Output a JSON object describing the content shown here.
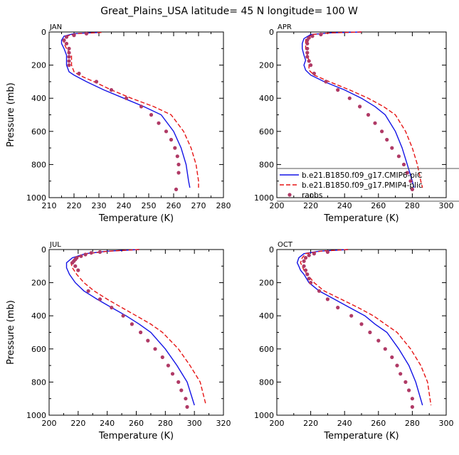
{
  "page": {
    "title": "Great_Plains_USA   latitude= 45 N longitude= 100 W"
  },
  "colors": {
    "series_model_a": "#1414e6",
    "series_model_b": "#e61414",
    "series_raobs": "#b03a66"
  },
  "legend": {
    "placement": "inside APR panel, lower area",
    "entries": [
      {
        "label": "b.e21.B1850.f09_g17.CMIP6-piC",
        "style": "solid-line",
        "color": "#1414e6"
      },
      {
        "label": "b.e21.B1850.f09_g17.PMIP4-plic",
        "style": "dashed-line",
        "color": "#e61414"
      },
      {
        "label": "raobs",
        "style": "dot",
        "color": "#b03a66"
      }
    ]
  },
  "chart_data": [
    {
      "type": "line",
      "panel_label": "JAN",
      "xlabel": "Temperature (K)",
      "ylabel": "Pressure (mb)",
      "xlim": [
        210,
        280
      ],
      "ylim": [
        1000,
        0
      ],
      "xticks": [
        210,
        220,
        230,
        240,
        250,
        260,
        270,
        280
      ],
      "yticks": [
        0,
        200,
        400,
        600,
        800,
        1000
      ],
      "series": [
        {
          "name": "b.e21.B1850.f09_g17.CMIP6-piC",
          "style": "line-solid",
          "x": [
            230,
            220,
            216,
            215,
            215,
            216,
            217,
            217,
            217,
            218,
            220,
            225,
            232,
            240,
            248,
            255,
            260,
            263,
            265,
            266,
            266.5
          ],
          "y": [
            3,
            10,
            25,
            50,
            70,
            100,
            140,
            170,
            200,
            240,
            260,
            300,
            350,
            400,
            450,
            500,
            600,
            700,
            800,
            900,
            940
          ]
        },
        {
          "name": "b.e21.B1850.f09_g17.PMIP4-plic",
          "style": "line-dashed",
          "x": [
            231,
            221,
            217,
            216,
            216,
            217,
            219,
            219,
            219,
            220,
            222,
            228,
            235,
            243,
            252,
            259,
            264,
            267,
            269,
            270,
            270
          ],
          "y": [
            3,
            10,
            25,
            50,
            70,
            100,
            140,
            170,
            200,
            240,
            260,
            300,
            350,
            400,
            450,
            500,
            600,
            700,
            800,
            900,
            940
          ]
        },
        {
          "name": "raobs",
          "style": "dots",
          "x": [
            225,
            220,
            217,
            216,
            217,
            218,
            218,
            218,
            218,
            218,
            222,
            229,
            235,
            241,
            247,
            251,
            254,
            257,
            259,
            260.5,
            261.5,
            262,
            262,
            261
          ],
          "y": [
            10,
            20,
            30,
            50,
            70,
            100,
            125,
            150,
            175,
            200,
            250,
            300,
            350,
            400,
            450,
            500,
            550,
            600,
            650,
            700,
            750,
            800,
            850,
            950
          ]
        }
      ]
    },
    {
      "type": "line",
      "panel_label": "APR",
      "xlabel": "Temperature (K)",
      "ylabel": "",
      "xlim": [
        200,
        300
      ],
      "ylim": [
        1000,
        0
      ],
      "xticks": [
        200,
        220,
        240,
        260,
        280,
        300
      ],
      "yticks": [
        0,
        200,
        400,
        600,
        800,
        1000
      ],
      "series": [
        {
          "name": "b.e21.B1850.f09_g17.CMIP6-piC",
          "style": "line-solid",
          "x": [
            250,
            232,
            220,
            216,
            215,
            215,
            216,
            217,
            216,
            217,
            220,
            228,
            240,
            250,
            258,
            264,
            270,
            274,
            277,
            280,
            281
          ],
          "y": [
            0,
            5,
            15,
            40,
            70,
            100,
            140,
            170,
            200,
            230,
            260,
            300,
            350,
            400,
            450,
            500,
            600,
            700,
            800,
            900,
            940
          ]
        },
        {
          "name": "b.e21.B1850.f09_g17.PMIP4-plic",
          "style": "line-dashed",
          "x": [
            250,
            232,
            221,
            217,
            217,
            217,
            218,
            219,
            219,
            219,
            222,
            231,
            243,
            254,
            263,
            270,
            276,
            280,
            283,
            285,
            286
          ],
          "y": [
            0,
            5,
            15,
            40,
            70,
            100,
            140,
            170,
            200,
            230,
            260,
            300,
            350,
            400,
            450,
            500,
            600,
            700,
            800,
            900,
            940
          ]
        },
        {
          "name": "raobs",
          "style": "dots",
          "x": [
            226,
            221,
            219,
            218,
            218,
            218,
            218,
            218,
            219,
            220,
            222,
            229,
            236,
            243,
            249,
            254,
            258,
            262,
            265,
            268,
            272,
            275,
            277,
            279,
            280
          ],
          "y": [
            15,
            25,
            35,
            50,
            70,
            100,
            125,
            150,
            175,
            200,
            250,
            300,
            350,
            400,
            450,
            500,
            550,
            600,
            650,
            700,
            750,
            800,
            850,
            900,
            950
          ]
        }
      ]
    },
    {
      "type": "line",
      "panel_label": "JUL",
      "xlabel": "Temperature (K)",
      "ylabel": "Pressure (mb)",
      "xlim": [
        200,
        320
      ],
      "ylim": [
        1000,
        0
      ],
      "xticks": [
        200,
        220,
        240,
        260,
        280,
        300,
        320
      ],
      "yticks": [
        0,
        200,
        400,
        600,
        800,
        1000
      ],
      "series": [
        {
          "name": "b.e21.B1850.f09_g17.CMIP6-piC",
          "style": "line-solid",
          "x": [
            262,
            240,
            225,
            216,
            212,
            212,
            214,
            218,
            224,
            233,
            243,
            253,
            262,
            270,
            280,
            288,
            295,
            300
          ],
          "y": [
            0,
            10,
            25,
            50,
            80,
            110,
            150,
            200,
            250,
            300,
            350,
            400,
            450,
            500,
            600,
            700,
            800,
            940
          ]
        },
        {
          "name": "b.e21.B1850.f09_g17.PMIP4-plic",
          "style": "line-dashed",
          "x": [
            262,
            241,
            226,
            218,
            215,
            216,
            219,
            224,
            231,
            240,
            250,
            260,
            270,
            278,
            289,
            297,
            304,
            308
          ],
          "y": [
            0,
            10,
            25,
            50,
            80,
            110,
            150,
            200,
            250,
            300,
            350,
            400,
            450,
            500,
            600,
            700,
            800,
            940
          ]
        },
        {
          "name": "raobs",
          "style": "dots",
          "x": [
            235,
            229,
            225,
            222,
            219,
            218,
            217,
            216,
            218,
            220,
            227,
            235,
            243,
            251,
            257,
            263,
            268,
            273,
            278,
            282,
            285,
            289,
            291,
            294,
            295
          ],
          "y": [
            15,
            20,
            30,
            40,
            50,
            60,
            70,
            80,
            100,
            125,
            250,
            300,
            350,
            400,
            450,
            500,
            550,
            600,
            650,
            700,
            750,
            800,
            850,
            900,
            950
          ]
        }
      ]
    },
    {
      "type": "line",
      "panel_label": "OCT",
      "xlabel": "Temperature (K)",
      "ylabel": "",
      "xlim": [
        200,
        300
      ],
      "ylim": [
        1000,
        0
      ],
      "xticks": [
        200,
        220,
        240,
        260,
        280,
        300
      ],
      "yticks": [
        0,
        200,
        400,
        600,
        800,
        1000
      ],
      "series": [
        {
          "name": "b.e21.B1850.f09_g17.CMIP6-piC",
          "style": "line-solid",
          "x": [
            242,
            225,
            216,
            213,
            212,
            213,
            214,
            216,
            219,
            225,
            234,
            243,
            252,
            258,
            265,
            272,
            278,
            282,
            286
          ],
          "y": [
            0,
            10,
            25,
            50,
            80,
            100,
            125,
            150,
            200,
            250,
            300,
            350,
            400,
            450,
            500,
            600,
            700,
            800,
            940
          ]
        },
        {
          "name": "b.e21.B1850.f09_g17.PMIP4-plic",
          "style": "line-dashed",
          "x": [
            242,
            226,
            217,
            215,
            214,
            215,
            216,
            218,
            222,
            228,
            238,
            248,
            257,
            264,
            271,
            279,
            285,
            289,
            291
          ],
          "y": [
            0,
            10,
            25,
            50,
            80,
            100,
            125,
            150,
            200,
            250,
            300,
            350,
            400,
            450,
            500,
            600,
            700,
            800,
            940
          ]
        },
        {
          "name": "raobs",
          "style": "dots",
          "x": [
            230,
            222,
            219,
            217,
            216,
            216,
            217,
            218,
            219,
            220,
            225,
            230,
            236,
            244,
            250,
            255,
            260,
            264,
            268,
            271,
            273,
            276,
            278,
            280,
            280
          ],
          "y": [
            15,
            25,
            35,
            50,
            70,
            100,
            125,
            150,
            175,
            200,
            250,
            300,
            350,
            400,
            450,
            500,
            550,
            600,
            650,
            700,
            750,
            800,
            850,
            900,
            950
          ]
        }
      ]
    }
  ]
}
